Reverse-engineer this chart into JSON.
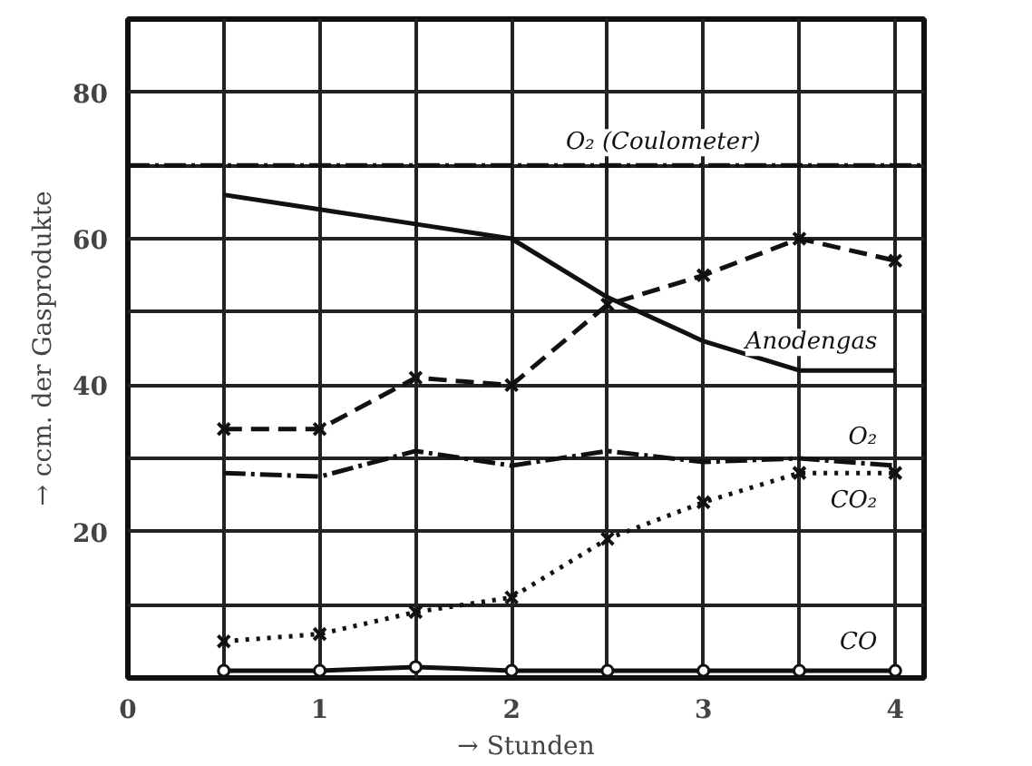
{
  "chart_data": {
    "type": "line",
    "xlabel": "→ Stunden",
    "ylabel": "→ ccm. der Gasprodukte",
    "xlim": [
      0,
      4.15
    ],
    "ylim": [
      0,
      90
    ],
    "xticks": [
      0,
      {
        "value": 0.5,
        "label": null
      },
      1,
      {
        "value": 1.5,
        "label": null
      },
      2,
      {
        "value": 2.5,
        "label": null
      },
      3,
      {
        "value": 3.5,
        "label": null
      },
      4
    ],
    "yticks": [
      {
        "value": 10,
        "label": null
      },
      20,
      {
        "value": 30,
        "label": null
      },
      40,
      {
        "value": 50,
        "label": null
      },
      60,
      {
        "value": 70,
        "label": null
      },
      80
    ],
    "grid": true,
    "color": "#111111",
    "series": [
      {
        "name": "O₂ (Coulometer)",
        "x": [
          0,
          4.15
        ],
        "values": [
          70,
          70
        ],
        "line_style": "dashdot",
        "marker": "none"
      },
      {
        "name": "Anodengas",
        "x": [
          0.5,
          1,
          1.5,
          2,
          2.5,
          3,
          3.5,
          4
        ],
        "values": [
          66,
          64,
          62,
          60,
          52,
          46,
          42,
          42
        ],
        "line_style": "solid",
        "marker": "none"
      },
      {
        "x": [
          0.5,
          1,
          1.5,
          2,
          2.5,
          3,
          3.5,
          4
        ],
        "values": [
          34,
          34,
          41,
          40,
          51,
          55,
          60,
          57
        ],
        "line_style": "dashed",
        "marker": "cross"
      },
      {
        "name": "O₂",
        "x": [
          0.5,
          1,
          1.5,
          2,
          2.5,
          3,
          3.5,
          4
        ],
        "values": [
          28,
          27.5,
          31,
          29,
          31,
          29.5,
          30,
          29
        ],
        "line_style": "dashdot",
        "marker": "none"
      },
      {
        "name": "CO₂",
        "x": [
          0.5,
          1,
          1.5,
          2,
          2.5,
          3,
          3.5,
          4
        ],
        "values": [
          5,
          6,
          9,
          11,
          19,
          24,
          28,
          28
        ],
        "line_style": "dotted",
        "marker": "cross"
      },
      {
        "name": "CO",
        "x": [
          0.5,
          1,
          1.5,
          2,
          2.5,
          3,
          3.5,
          4
        ],
        "values": [
          1,
          1,
          1.5,
          1,
          1,
          1,
          1,
          1
        ],
        "line_style": "solid",
        "marker": "circle"
      }
    ]
  }
}
